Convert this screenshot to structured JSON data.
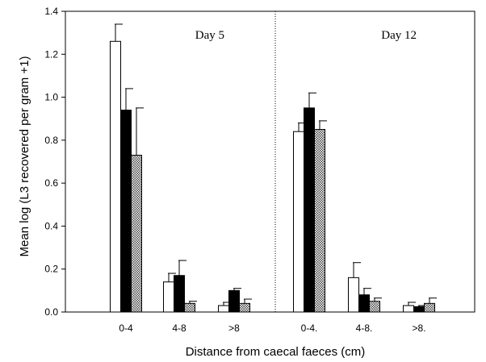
{
  "chart_data": {
    "type": "bar",
    "xlabel": "Distance from caecal faeces (cm)",
    "ylabel": "Mean log (L3 recovered per gram +1)",
    "ylim": [
      0,
      1.4
    ],
    "yticks": [
      "0.0",
      "0.2",
      "0.4",
      "0.6",
      "0.8",
      "1.0",
      "1.2",
      "1.4"
    ],
    "grid": false,
    "panels": [
      {
        "label": "Day 5",
        "categories": [
          "0-4",
          "4-8",
          ">8"
        ],
        "series": [
          {
            "values": [
              1.26,
              0.14,
              0.03
            ],
            "errors": [
              0.08,
              0.04,
              0.015
            ]
          },
          {
            "values": [
              0.94,
              0.17,
              0.1
            ],
            "errors": [
              0.1,
              0.07,
              0.01
            ]
          },
          {
            "values": [
              0.73,
              0.04,
              0.04
            ],
            "errors": [
              0.22,
              0.01,
              0.02
            ]
          }
        ]
      },
      {
        "label": "Day 12",
        "categories": [
          "0-4.",
          "4-8.",
          ">8."
        ],
        "series": [
          {
            "values": [
              0.84,
              0.16,
              0.03
            ],
            "errors": [
              0.04,
              0.07,
              0.015
            ]
          },
          {
            "values": [
              0.95,
              0.08,
              0.025
            ],
            "errors": [
              0.07,
              0.03,
              0.005
            ]
          },
          {
            "values": [
              0.85,
              0.05,
              0.04
            ],
            "errors": [
              0.04,
              0.015,
              0.025
            ]
          }
        ]
      }
    ],
    "series_styles": [
      {
        "fill": "#ffffff",
        "pattern": "open"
      },
      {
        "fill": "#000000",
        "pattern": "solid"
      },
      {
        "fill": "#000000",
        "pattern": "crosshatch"
      }
    ]
  }
}
